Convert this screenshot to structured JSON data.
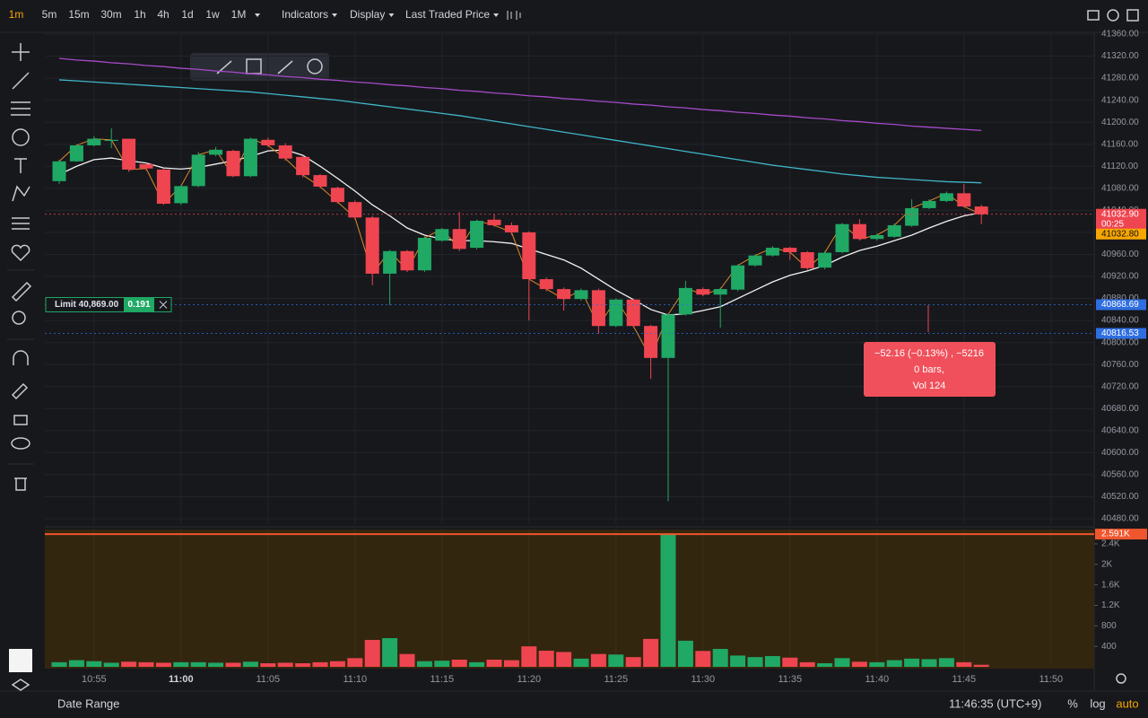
{
  "toolbar": {
    "intervals": [
      "1m",
      "5m",
      "15m",
      "30m",
      "1h",
      "4h",
      "1d",
      "1w",
      "1M"
    ],
    "menus": [
      "Indicators",
      "Display",
      "Last Traded Price"
    ]
  },
  "chart_data": {
    "type": "candlestick",
    "categories": [
      null,
      null,
      "10:55",
      null,
      null,
      null,
      null,
      "11:00",
      null,
      null,
      null,
      null,
      "11:05",
      null,
      null,
      null,
      null,
      "11:10",
      null,
      null,
      null,
      null,
      "11:15",
      null,
      null,
      null,
      null,
      "11:20",
      null,
      null,
      null,
      null,
      "11:25",
      null,
      null,
      null,
      null,
      "11:30",
      null,
      null,
      null,
      null,
      "11:35",
      null,
      null,
      null,
      null,
      "11:40",
      null,
      null,
      null,
      null,
      "11:45",
      null,
      null,
      null,
      null,
      "11:50",
      null,
      null
    ],
    "open": [
      41093,
      41129,
      41158,
      41166,
      41170,
      41124,
      41114,
      41053,
      41084,
      41141,
      41148,
      41102,
      41168,
      41158,
      41137,
      41104,
      41081,
      41055,
      41027,
      40925,
      40966,
      40931,
      40985,
      41006,
      40972,
      41023,
      41013,
      41000,
      40915,
      40897,
      40879,
      40895,
      40830,
      40878,
      40830,
      40772,
      40851,
      40897,
      40887,
      40896,
      40940,
      40958,
      40972,
      40964,
      40936,
      40964,
      41015,
      40988,
      40992,
      41012,
      41044,
      41057,
      41071,
      41047,
      null,
      null,
      null,
      null,
      null,
      null
    ],
    "high": [
      41132,
      41160,
      41175,
      41189,
      41170,
      41126,
      41116,
      41086,
      41146,
      41155,
      41150,
      41172,
      41172,
      41162,
      41139,
      41106,
      41083,
      41058,
      41030,
      40968,
      40968,
      40993,
      41008,
      41037,
      41023,
      41033,
      41018,
      41002,
      40918,
      40900,
      40898,
      40898,
      40880,
      40880,
      40832,
      40853,
      40912,
      40900,
      40900,
      40942,
      40960,
      40975,
      40974,
      40966,
      40966,
      41017,
      41024,
      40998,
      41016,
      41060,
      41060,
      41074,
      41088,
      41050,
      null,
      null,
      null,
      null,
      null,
      null
    ],
    "low": [
      41088,
      41128,
      41156,
      41153,
      41110,
      41112,
      41050,
      41050,
      41082,
      41138,
      41100,
      41100,
      41155,
      41130,
      41100,
      41080,
      41052,
      41023,
      40904,
      40868,
      40928,
      40928,
      40983,
      40966,
      40969,
      41010,
      40995,
      40840,
      40893,
      40858,
      40876,
      40816,
      40828,
      40828,
      40734,
      40512,
      40849,
      40884,
      40827,
      40893,
      40938,
      40956,
      40950,
      40932,
      40933,
      40962,
      40985,
      40985,
      40990,
      41010,
      41042,
      41055,
      41045,
      41015,
      null,
      null,
      null,
      null,
      null,
      null
    ],
    "close": [
      41129,
      41158,
      41170,
      41168,
      41114,
      41116,
      41052,
      41084,
      41141,
      41150,
      41102,
      41170,
      41158,
      41134,
      41104,
      41083,
      41055,
      41027,
      40925,
      40966,
      40931,
      40990,
      41006,
      40970,
      41021,
      41013,
      41000,
      40915,
      40897,
      40879,
      40895,
      40830,
      40878,
      40830,
      40772,
      40851,
      40899,
      40887,
      40897,
      40940,
      40958,
      40972,
      40964,
      40935,
      40963,
      41015,
      40988,
      40995,
      41013,
      41044,
      41057,
      41071,
      41047,
      41032.9,
      null,
      null,
      null,
      null,
      null,
      null
    ],
    "up_color": "#20a865",
    "down_color": "#ef4550",
    "close_line_color": "#e08a2a",
    "ylim": [
      40480,
      41360
    ],
    "yticks": [
      {
        "value": 41360,
        "label": "41360.00"
      },
      {
        "value": 41320,
        "label": "41320.00"
      },
      {
        "value": 41280,
        "label": "41280.00"
      },
      {
        "value": 41240,
        "label": "41240.00"
      },
      {
        "value": 41200,
        "label": "41200.00"
      },
      {
        "value": 41160,
        "label": "41160.00"
      },
      {
        "value": 41120,
        "label": "41120.00"
      },
      {
        "value": 41080,
        "label": "41080.00"
      },
      {
        "value": 41040,
        "label": "41040.00"
      },
      {
        "value": 41000,
        "label": "41000.00"
      },
      {
        "value": 40960,
        "label": "40960.00"
      },
      {
        "value": 40920,
        "label": "40920.00"
      },
      {
        "value": 40880,
        "label": "40880.00"
      },
      {
        "value": 40840,
        "label": "40840.00"
      },
      {
        "value": 40800,
        "label": "40800.00"
      },
      {
        "value": 40760,
        "label": "40760.00"
      },
      {
        "value": 40720,
        "label": "40720.00"
      },
      {
        "value": 40680,
        "label": "40680.00"
      },
      {
        "value": 40640,
        "label": "40640.00"
      },
      {
        "value": 40600,
        "label": "40600.00"
      },
      {
        "value": 40560,
        "label": "40560.00"
      },
      {
        "value": 40520,
        "label": "40520.00"
      },
      {
        "value": 40480,
        "label": "40480.00"
      }
    ],
    "grid": true,
    "moving_averages": [
      {
        "color": "#a64ac9",
        "values": [
          41316,
          41313,
          41311,
          41308,
          41306,
          41303,
          41301,
          41298,
          41296,
          41293,
          41291,
          41288,
          41286,
          41283,
          41281,
          41278,
          41276,
          41273,
          41271,
          41268,
          41266,
          41263,
          41261,
          41258,
          41256,
          41253,
          41251,
          41248,
          41246,
          41243,
          41241,
          41238,
          41236,
          41233,
          41231,
          41228,
          41226,
          41223,
          41221,
          41218,
          41216,
          41213,
          41211,
          41208,
          41206,
          41203,
          41201,
          41198,
          41196,
          41193,
          41191,
          41189,
          41187,
          41185,
          null,
          null,
          null,
          null,
          null,
          null
        ]
      },
      {
        "color": "#3fb6c8",
        "values": [
          41277,
          41275,
          41273,
          41271,
          41269,
          41267,
          41265,
          41263,
          41261,
          41259,
          41257,
          41255,
          41252,
          41249,
          41246,
          41243,
          41240,
          41236,
          41232,
          41228,
          41224,
          41220,
          41216,
          41212,
          41207,
          41202,
          41197,
          41192,
          41187,
          41182,
          41177,
          41172,
          41167,
          41162,
          41157,
          41152,
          41147,
          41142,
          41137,
          41132,
          41127,
          41122,
          41118,
          41114,
          41110,
          41106,
          41103,
          41100,
          41098,
          41096,
          41094,
          41092,
          41091,
          41090,
          null,
          null,
          null,
          null,
          null,
          null
        ]
      },
      {
        "color": "#f2f2f2",
        "values": [
          41105,
          41120,
          41132,
          41135,
          41130,
          41126,
          41117,
          41115,
          41118,
          41124,
          41130,
          41138,
          41148,
          41150,
          41140,
          41120,
          41098,
          41075,
          41050,
          41030,
          41008,
          40995,
          40988,
          40985,
          40985,
          40983,
          40980,
          40970,
          40960,
          40950,
          40935,
          40915,
          40895,
          40878,
          40860,
          40850,
          40852,
          40858,
          40865,
          40880,
          40895,
          40910,
          40922,
          40930,
          40940,
          40955,
          40967,
          40975,
          40985,
          40995,
          41008,
          41020,
          41030,
          41036,
          null,
          null,
          null,
          null,
          null,
          null
        ]
      }
    ],
    "volume": {
      "values": [
        90,
        130,
        110,
        80,
        100,
        90,
        80,
        90,
        90,
        80,
        80,
        100,
        70,
        80,
        70,
        90,
        110,
        170,
        525,
        560,
        250,
        110,
        120,
        140,
        90,
        140,
        130,
        400,
        315,
        290,
        160,
        250,
        240,
        190,
        545,
        2591,
        510,
        310,
        350,
        220,
        190,
        210,
        180,
        90,
        70,
        170,
        100,
        90,
        130,
        160,
        150,
        170,
        90,
        40,
        null,
        null,
        null,
        null,
        null,
        null
      ],
      "ylim": [
        0,
        2680
      ],
      "yticks": [
        400,
        800,
        {
          "value": 1200,
          "label": "1.2K"
        },
        {
          "value": 1600,
          "label": "1.6K"
        },
        {
          "value": 2000,
          "label": "2K"
        },
        {
          "value": 2400,
          "label": "2.4K"
        }
      ],
      "marker": {
        "value": 2591,
        "label": "2.591K",
        "color": "#f0562d"
      }
    },
    "price_labels": [
      {
        "value": 41032.9,
        "label": "41032.90",
        "countdown": "00:25",
        "color": "#ef4550"
      },
      {
        "value": 41032.8,
        "label": "41032.80",
        "color": "#f7a600"
      },
      {
        "value": 40868.69,
        "label": "40868.69",
        "color": "#2f6ee0"
      },
      {
        "value": 40816.53,
        "label": "40816.53",
        "color": "#2f6ee0"
      }
    ],
    "tooltip": [
      "−52.16 (−0.13%) , −5216",
      "0 bars,",
      "Vol 124"
    ],
    "limit_order": {
      "label": "Limit 40,869.00",
      "quantity": "0.191"
    }
  },
  "footer": {
    "date_range": "Date Range",
    "clock": "11:46:35 (UTC+9)",
    "buttons": [
      "%",
      "log",
      "auto"
    ]
  }
}
